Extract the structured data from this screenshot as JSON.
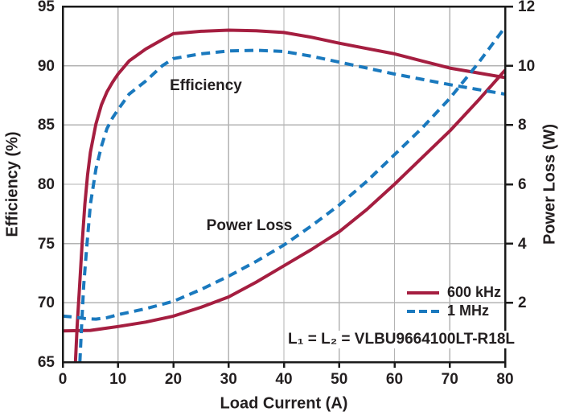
{
  "chart_data": {
    "type": "line",
    "title": "",
    "xlabel": "Load Current (A)",
    "ylabel_left": "Efficiency (%)",
    "ylabel_right": "Power Loss (W)",
    "x_range": [
      0,
      80
    ],
    "y_left_range": [
      65,
      95
    ],
    "y_right_range": [
      0,
      12
    ],
    "x_ticks": [
      0,
      10,
      20,
      30,
      40,
      50,
      60,
      70,
      80
    ],
    "y_left_ticks": [
      65,
      70,
      75,
      80,
      85,
      90,
      95
    ],
    "y_right_ticks": [
      2,
      4,
      6,
      8,
      10,
      12
    ],
    "grid": true,
    "legend_position": "bottom-right",
    "colors": {
      "series_600khz": "#A51E40",
      "series_1mhz": "#1A79BE",
      "grid": "#b3b3b3",
      "frame": "#1a1a1a",
      "text": "#231f20"
    },
    "annotations": [
      {
        "text": "Efficiency"
      },
      {
        "text": "Power Loss"
      }
    ],
    "note": "L₁ = L₂ = VLBU9664100LT-R18L",
    "series": [
      {
        "name": "600 kHz",
        "color": "#A51E40",
        "dash": false,
        "efficiency_pct": [
          [
            2.3,
            65
          ],
          [
            2.6,
            68
          ],
          [
            3,
            71
          ],
          [
            3.5,
            75
          ],
          [
            4,
            78.3
          ],
          [
            4.5,
            80.8
          ],
          [
            5,
            82.7
          ],
          [
            6,
            85.1
          ],
          [
            7,
            86.7
          ],
          [
            8,
            87.8
          ],
          [
            9,
            88.6
          ],
          [
            10,
            89.3
          ],
          [
            12,
            90.4
          ],
          [
            15,
            91.4
          ],
          [
            18,
            92.2
          ],
          [
            20,
            92.7
          ],
          [
            25,
            92.9
          ],
          [
            30,
            93.0
          ],
          [
            35,
            92.95
          ],
          [
            40,
            92.8
          ],
          [
            45,
            92.4
          ],
          [
            50,
            91.9
          ],
          [
            55,
            91.45
          ],
          [
            60,
            91.0
          ],
          [
            65,
            90.4
          ],
          [
            70,
            89.8
          ],
          [
            75,
            89.4
          ],
          [
            80,
            89.0
          ]
        ],
        "power_loss_w": [
          [
            0,
            1.05
          ],
          [
            5,
            1.07
          ],
          [
            10,
            1.2
          ],
          [
            15,
            1.35
          ],
          [
            20,
            1.55
          ],
          [
            25,
            1.85
          ],
          [
            30,
            2.2
          ],
          [
            35,
            2.7
          ],
          [
            40,
            3.25
          ],
          [
            45,
            3.8
          ],
          [
            50,
            4.4
          ],
          [
            55,
            5.15
          ],
          [
            60,
            6.0
          ],
          [
            65,
            6.9
          ],
          [
            70,
            7.8
          ],
          [
            75,
            8.8
          ],
          [
            80,
            9.85
          ]
        ]
      },
      {
        "name": "1 MHz",
        "color": "#1A79BE",
        "dash": true,
        "efficiency_pct": [
          [
            3.1,
            65
          ],
          [
            3.4,
            68
          ],
          [
            3.8,
            71.5
          ],
          [
            4.3,
            74.5
          ],
          [
            5,
            78.3
          ],
          [
            6,
            81.3
          ],
          [
            7,
            83.2
          ],
          [
            8,
            84.7
          ],
          [
            9,
            85.6
          ],
          [
            10,
            86.3
          ],
          [
            12,
            87.6
          ],
          [
            15,
            88.7
          ],
          [
            18,
            90.0
          ],
          [
            20,
            90.6
          ],
          [
            25,
            91.0
          ],
          [
            30,
            91.25
          ],
          [
            35,
            91.3
          ],
          [
            40,
            91.2
          ],
          [
            45,
            90.8
          ],
          [
            50,
            90.3
          ],
          [
            55,
            89.8
          ],
          [
            60,
            89.3
          ],
          [
            65,
            88.85
          ],
          [
            70,
            88.4
          ],
          [
            75,
            88.0
          ],
          [
            80,
            87.6
          ]
        ],
        "power_loss_w": [
          [
            0,
            1.55
          ],
          [
            2,
            1.52
          ],
          [
            4,
            1.47
          ],
          [
            6,
            1.45
          ],
          [
            8,
            1.5
          ],
          [
            10,
            1.6
          ],
          [
            15,
            1.8
          ],
          [
            20,
            2.05
          ],
          [
            25,
            2.45
          ],
          [
            30,
            2.9
          ],
          [
            35,
            3.4
          ],
          [
            40,
            3.95
          ],
          [
            45,
            4.6
          ],
          [
            50,
            5.3
          ],
          [
            55,
            6.1
          ],
          [
            60,
            7.0
          ],
          [
            65,
            7.9
          ],
          [
            70,
            8.9
          ],
          [
            75,
            10.05
          ],
          [
            80,
            11.3
          ]
        ]
      }
    ]
  }
}
